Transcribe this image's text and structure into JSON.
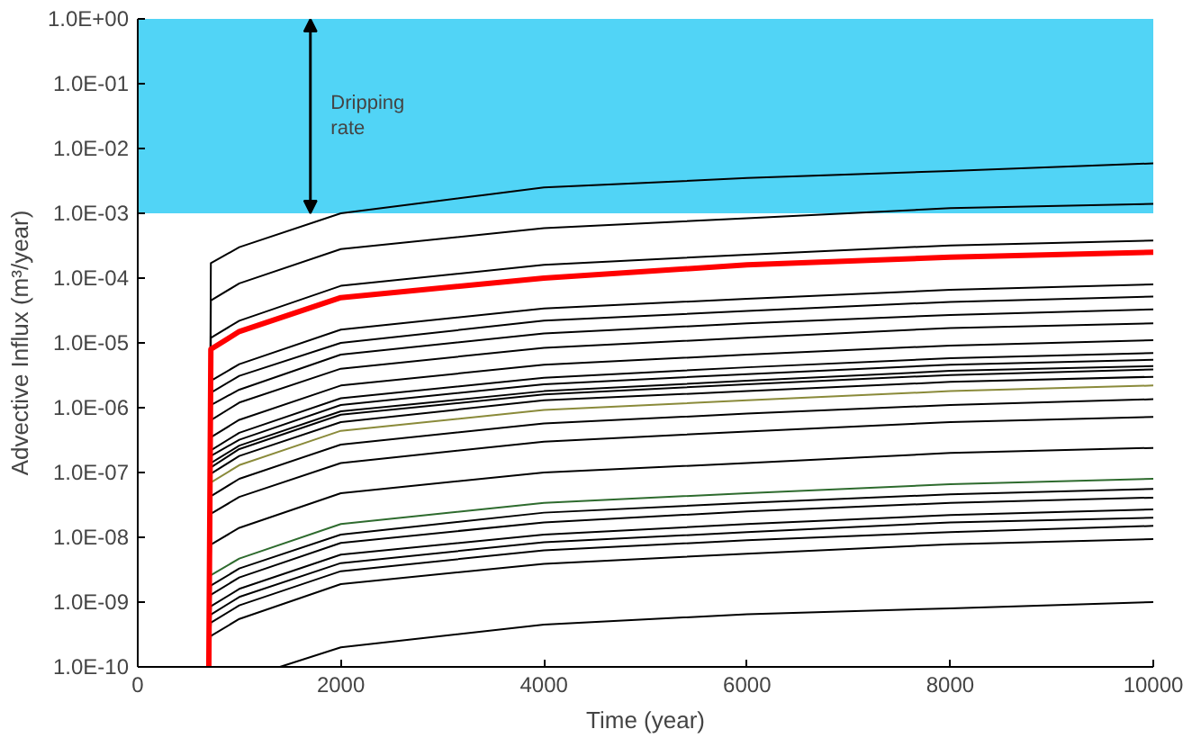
{
  "chart_data": {
    "type": "line",
    "xlabel": "Time (year)",
    "ylabel": "Advective Influx (m³/year)",
    "x": [
      700,
      720,
      1000,
      2000,
      4000,
      6000,
      8000,
      10000
    ],
    "xlim": [
      0,
      10000
    ],
    "xticks": [
      0,
      2000,
      4000,
      6000,
      8000,
      10000
    ],
    "ylim": [
      1e-10,
      1
    ],
    "log": true,
    "grid": false,
    "yticks": [
      {
        "value": 1,
        "label": "1.0E+00"
      },
      {
        "value": 0.1,
        "label": "1.0E-01"
      },
      {
        "value": 0.01,
        "label": "1.0E-02"
      },
      {
        "value": 0.001,
        "label": "1.0E-03"
      },
      {
        "value": 0.0001,
        "label": "1.0E-04"
      },
      {
        "value": 1e-05,
        "label": "1.0E-05"
      },
      {
        "value": 1e-06,
        "label": "1.0E-06"
      },
      {
        "value": 1e-07,
        "label": "1.0E-07"
      },
      {
        "value": 1e-08,
        "label": "1.0E-08"
      },
      {
        "value": 1e-09,
        "label": "1.0E-09"
      },
      {
        "value": 1e-10,
        "label": "1.0E-10"
      }
    ],
    "bands": [
      {
        "axis": "y",
        "from": 0.001,
        "to": 1,
        "label": "Dripping rate",
        "color": "#33ccf5"
      }
    ],
    "series": [
      {
        "color": "#000000",
        "values": [
          1e-10,
          0.00017,
          0.0003,
          0.001,
          0.0025,
          0.0035,
          0.0045,
          0.0059
        ]
      },
      {
        "color": "#000000",
        "values": [
          1e-10,
          4.5e-05,
          8.3e-05,
          0.00028,
          0.00059,
          0.00084,
          0.0012,
          0.0014
        ]
      },
      {
        "color": "#000000",
        "values": [
          1e-10,
          1.2e-05,
          2.2e-05,
          7.6e-05,
          0.00016,
          0.00023,
          0.00032,
          0.00038
        ]
      },
      {
        "color": "#000000",
        "values": [
          1e-10,
          2.6e-06,
          4.7e-06,
          1.6e-05,
          3.4e-05,
          4.8e-05,
          6.6e-05,
          8e-05
        ]
      },
      {
        "color": "#000000",
        "values": [
          1e-10,
          1.7e-06,
          3.1e-06,
          1e-05,
          2.2e-05,
          3.1e-05,
          4.3e-05,
          5.2e-05
        ]
      },
      {
        "color": "#000000",
        "values": [
          1e-10,
          1.1e-06,
          1.9e-06,
          6.6e-06,
          1.4e-05,
          2e-05,
          2.7e-05,
          3.3e-05
        ]
      },
      {
        "color": "#000000",
        "values": [
          1e-10,
          6.4e-07,
          1.2e-06,
          4e-06,
          8.4e-06,
          1.2e-05,
          1.7e-05,
          2e-05
        ]
      },
      {
        "color": "#000000",
        "values": [
          1e-10,
          3.5e-07,
          6.5e-07,
          2.2e-06,
          4.6e-06,
          6.6e-06,
          9.1e-06,
          1.1e-05
        ]
      },
      {
        "color": "#000000",
        "values": [
          1e-10,
          2.2e-07,
          4.1e-07,
          1.4e-06,
          2.9e-06,
          4.2e-06,
          5.8e-06,
          7e-06
        ]
      },
      {
        "color": "#000000",
        "values": [
          1e-10,
          1.8e-07,
          3.2e-07,
          1.1e-06,
          2.3e-06,
          3.3e-06,
          4.6e-06,
          5.5e-06
        ]
      },
      {
        "color": "#000000",
        "values": [
          1e-10,
          1.4e-07,
          2.6e-07,
          8.8e-07,
          1.8e-06,
          2.6e-06,
          3.7e-06,
          4.4e-06
        ]
      },
      {
        "color": "#000000",
        "values": [
          1e-10,
          1.2e-07,
          2.3e-07,
          7.8e-07,
          1.6e-06,
          2.3e-06,
          3.2e-06,
          3.9e-06
        ]
      },
      {
        "color": "#000000",
        "values": [
          1e-10,
          9.6e-08,
          1.8e-07,
          6e-07,
          1.3e-06,
          1.8e-06,
          2.5e-06,
          3e-06
        ]
      },
      {
        "color": "#8a8a3a",
        "values": [
          null,
          7e-08,
          1.3e-07,
          4.4e-07,
          9.2e-07,
          1.3e-06,
          1.8e-06,
          2.2e-06
        ]
      },
      {
        "color": "#000000",
        "values": [
          1e-10,
          4.3e-08,
          8e-08,
          2.7e-07,
          5.7e-07,
          8.1e-07,
          1.1e-06,
          1.35e-06
        ]
      },
      {
        "color": "#000000",
        "values": [
          1e-10,
          2.3e-08,
          4.2e-08,
          1.4e-07,
          3e-07,
          4.3e-07,
          6e-07,
          7.2e-07
        ]
      },
      {
        "color": "#000000",
        "values": [
          1e-10,
          7.7e-09,
          1.4e-08,
          4.8e-08,
          1e-07,
          1.4e-07,
          2e-07,
          2.4e-07
        ]
      },
      {
        "color": "#2e6b2e",
        "values": [
          null,
          2.6e-09,
          4.7e-09,
          1.6e-08,
          3.4e-08,
          4.8e-08,
          6.6e-08,
          8e-08
        ]
      },
      {
        "color": "#000000",
        "values": [
          1e-10,
          1.8e-09,
          3.3e-09,
          1.1e-08,
          2.4e-08,
          3.4e-08,
          4.6e-08,
          5.6e-08
        ]
      },
      {
        "color": "#000000",
        "values": [
          1e-10,
          1.3e-09,
          2.4e-09,
          8.2e-09,
          1.7e-08,
          2.5e-08,
          3.4e-08,
          4.1e-08
        ]
      },
      {
        "color": "#000000",
        "values": [
          1e-10,
          8.6e-10,
          1.6e-09,
          5.4e-09,
          1.1e-08,
          1.6e-08,
          2.2e-08,
          2.7e-08
        ]
      },
      {
        "color": "#000000",
        "values": [
          1e-10,
          6.4e-10,
          1.2e-09,
          4e-09,
          8.4e-09,
          1.2e-08,
          1.7e-08,
          2e-08
        ]
      },
      {
        "color": "#000000",
        "values": [
          1e-10,
          4.8e-10,
          8.9e-10,
          3e-09,
          6.3e-09,
          9e-09,
          1.2e-08,
          1.5e-08
        ]
      },
      {
        "color": "#000000",
        "values": [
          1e-10,
          3e-10,
          5.5e-10,
          1.9e-09,
          3.9e-09,
          5.6e-09,
          7.8e-09,
          9.4e-09
        ]
      },
      {
        "color": "#000000",
        "x": [
          1400,
          2000,
          4000,
          6000,
          8000,
          10000
        ],
        "values": [
          1e-10,
          2e-10,
          4.5e-10,
          6.5e-10,
          8e-10,
          1e-09
        ]
      },
      {
        "color": "#ff0000",
        "values": [
          1e-10,
          8e-06,
          1.5e-05,
          5e-05,
          0.0001,
          0.00016,
          0.00021,
          0.00025
        ]
      }
    ]
  }
}
